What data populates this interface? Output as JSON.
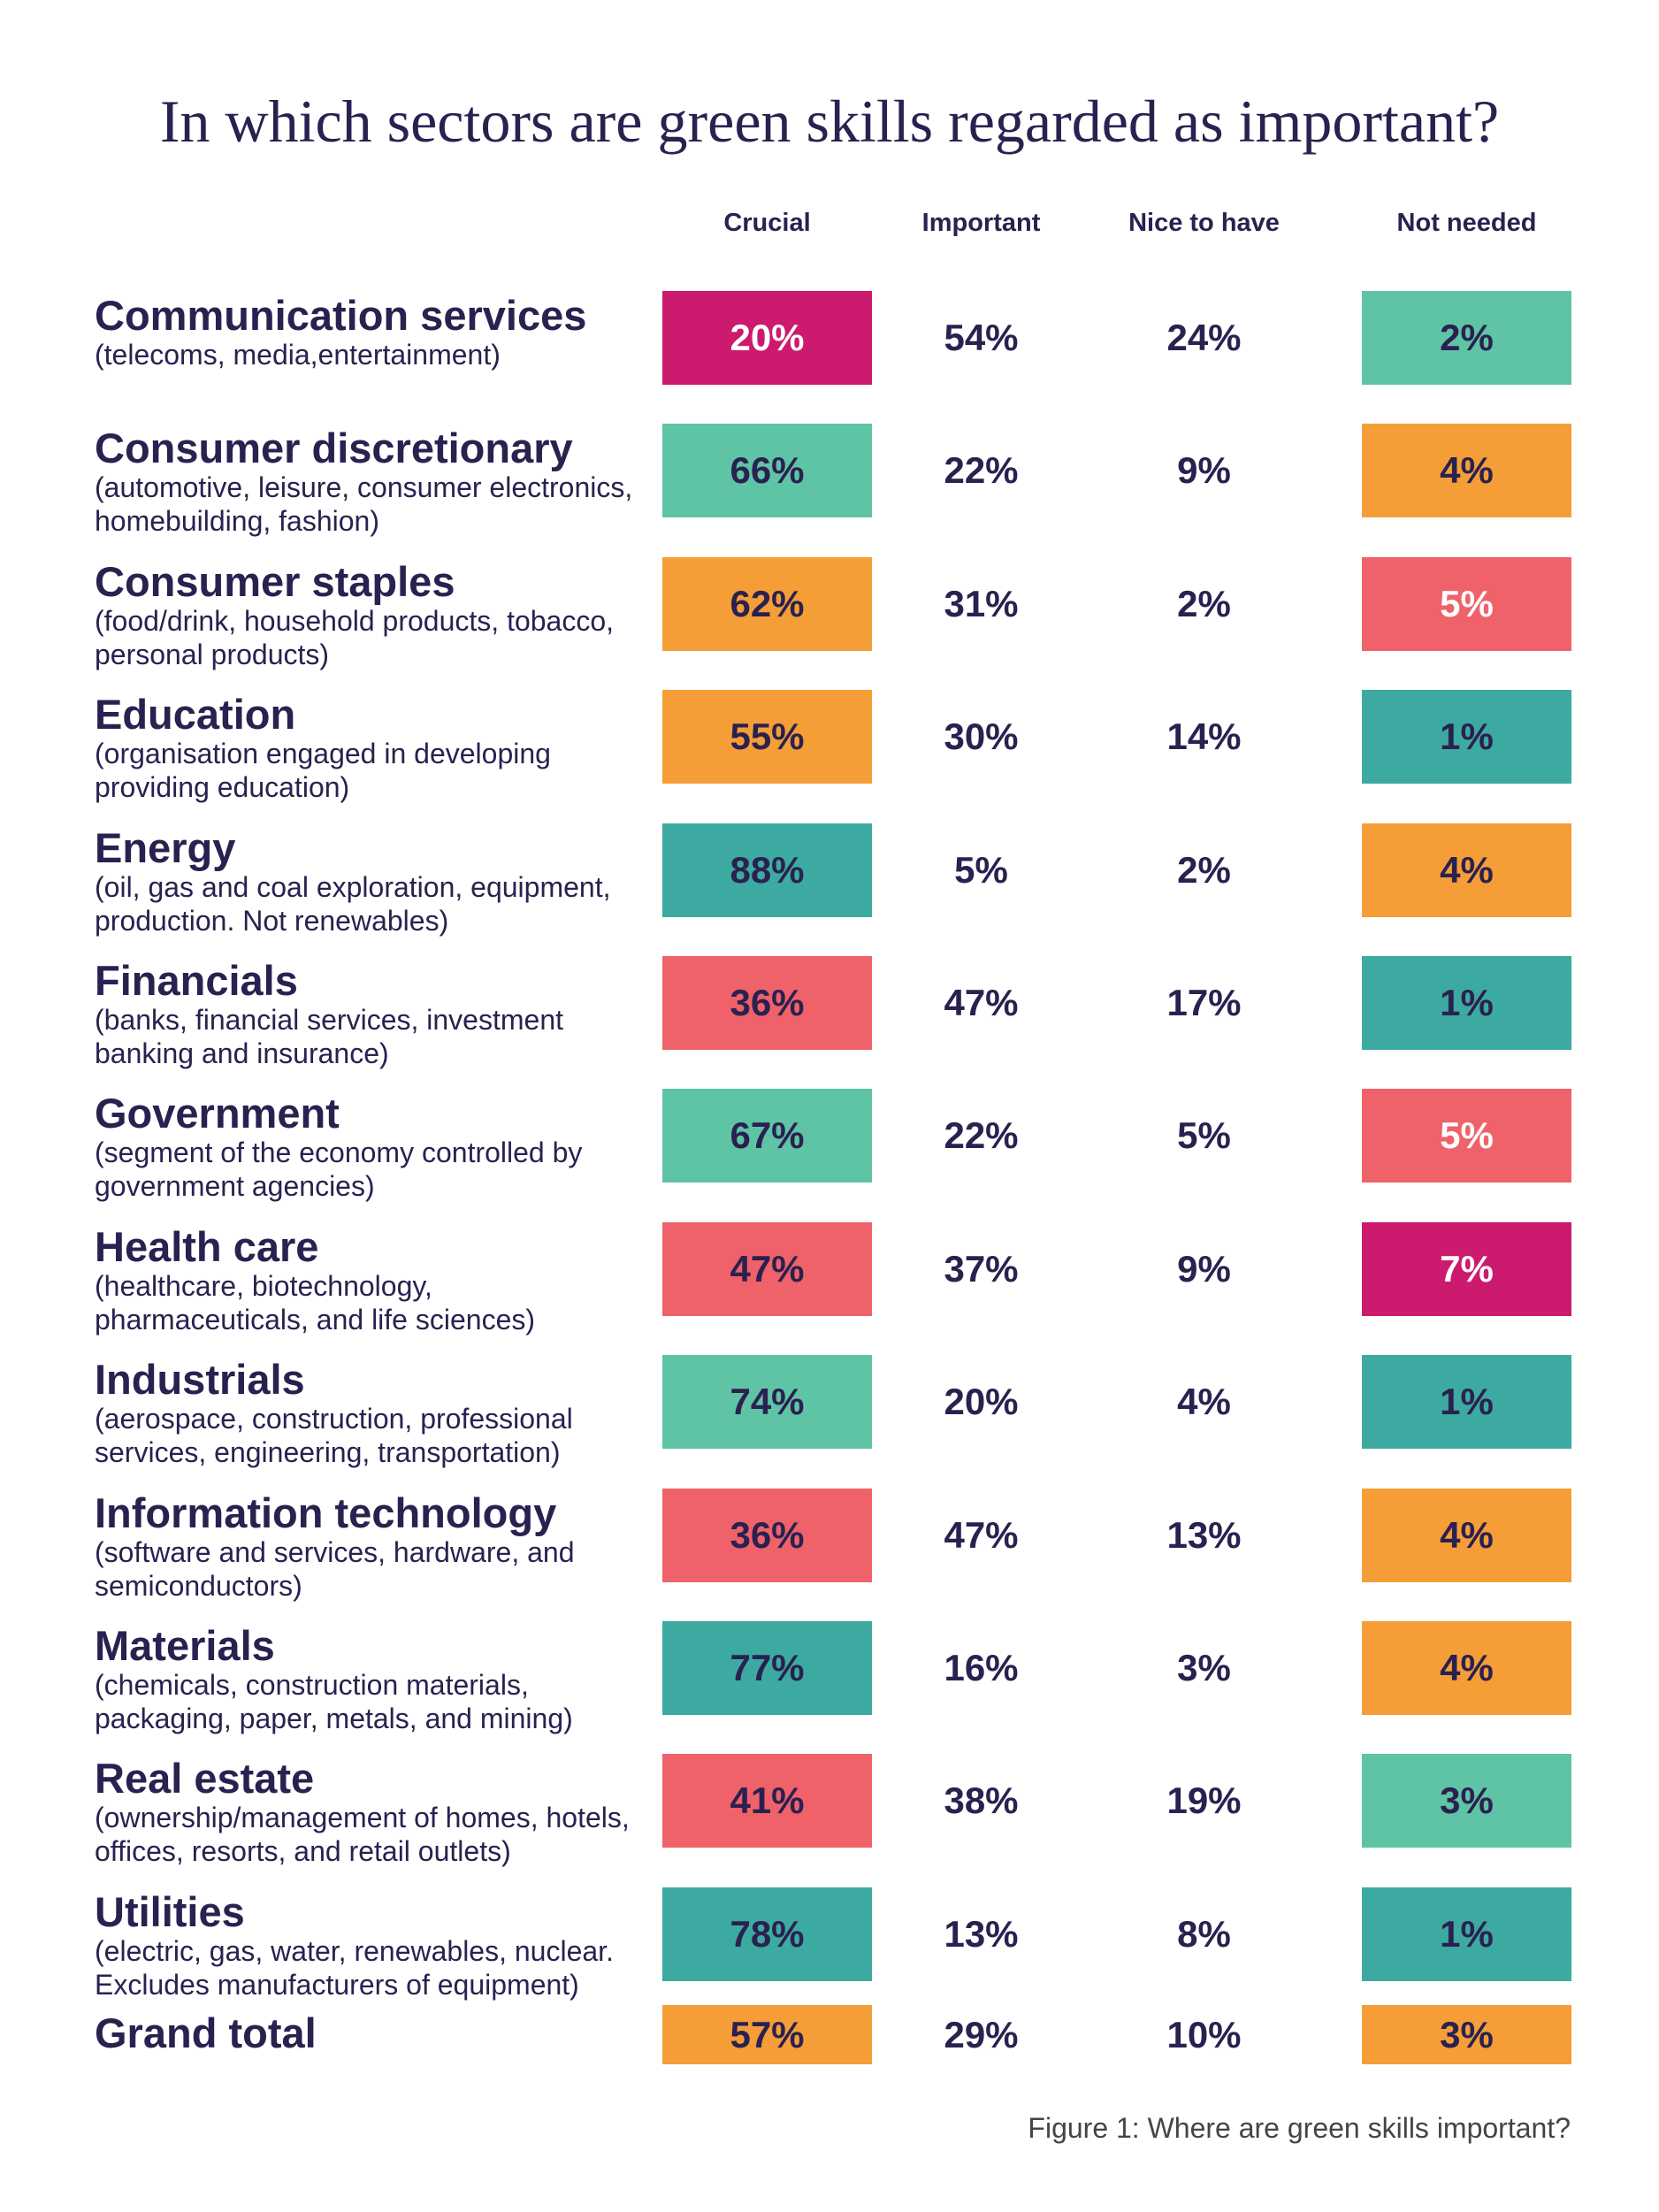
{
  "title": "In which sectors are green skills regarded as important?",
  "table": {
    "columns": [
      "Crucial",
      "Important",
      "Nice to have",
      "Not needed"
    ],
    "rows": [
      {
        "label": "Communication services",
        "description": [
          "(telecoms, media,entertainment)"
        ],
        "cells": [
          {
            "text": "20%",
            "color": "#cc1a6e",
            "text_color": "#ffffff"
          },
          {
            "text": "54%"
          },
          {
            "text": "24%"
          },
          {
            "text": "2%",
            "color": "#5fc3a5"
          }
        ]
      },
      {
        "label": "Consumer discretionary",
        "description": [
          "(automotive, leisure, consumer electronics,",
          "homebuilding, fashion)"
        ],
        "cells": [
          {
            "text": "66%",
            "color": "#5fc3a5"
          },
          {
            "text": "22%"
          },
          {
            "text": "9%"
          },
          {
            "text": "4%",
            "color": "#f59e37"
          }
        ]
      },
      {
        "label": "Consumer staples",
        "description": [
          "(food/drink, household products, tobacco,",
          "personal products)"
        ],
        "cells": [
          {
            "text": "62%",
            "color": "#f59e37"
          },
          {
            "text": "31%"
          },
          {
            "text": "2%"
          },
          {
            "text": "5%",
            "color": "#ef6269",
            "text_color": "#ffffff"
          }
        ]
      },
      {
        "label": "Education",
        "description": [
          "(organisation engaged in developing",
          "providing education)"
        ],
        "cells": [
          {
            "text": "55%",
            "color": "#f59e37"
          },
          {
            "text": "30%"
          },
          {
            "text": "14%"
          },
          {
            "text": "1%",
            "color": "#3caaa0"
          }
        ]
      },
      {
        "label": "Energy",
        "description": [
          "(oil, gas and coal exploration, equipment,",
          "production. Not renewables)"
        ],
        "cells": [
          {
            "text": "88%",
            "color": "#3caaa0"
          },
          {
            "text": "5%"
          },
          {
            "text": "2%"
          },
          {
            "text": "4%",
            "color": "#f59e37"
          }
        ]
      },
      {
        "label": "Financials",
        "description": [
          "(banks, financial services, investment",
          "banking and insurance)"
        ],
        "cells": [
          {
            "text": "36%",
            "color": "#ef6269"
          },
          {
            "text": "47%"
          },
          {
            "text": "17%"
          },
          {
            "text": "1%",
            "color": "#3caaa0"
          }
        ]
      },
      {
        "label": "Government",
        "description": [
          "(segment of the economy controlled by",
          "government agencies)"
        ],
        "cells": [
          {
            "text": "67%",
            "color": "#5fc3a5"
          },
          {
            "text": "22%"
          },
          {
            "text": "5%"
          },
          {
            "text": "5%",
            "color": "#ef6269",
            "text_color": "#ffffff"
          }
        ]
      },
      {
        "label": "Health care",
        "description": [
          "(healthcare, biotechnology,",
          "pharmaceuticals, and life sciences)"
        ],
        "cells": [
          {
            "text": "47%",
            "color": "#ef6269"
          },
          {
            "text": "37%"
          },
          {
            "text": "9%"
          },
          {
            "text": "7%",
            "color": "#cc1a6e",
            "text_color": "#ffffff"
          }
        ]
      },
      {
        "label": "Industrials",
        "description": [
          "(aerospace, construction, professional",
          "services, engineering, transportation)"
        ],
        "cells": [
          {
            "text": "74%",
            "color": "#5fc3a5"
          },
          {
            "text": "20%"
          },
          {
            "text": "4%"
          },
          {
            "text": "1%",
            "color": "#3caaa0"
          }
        ]
      },
      {
        "label": "Information technology",
        "description": [
          "(software and services, hardware, and",
          "semiconductors)"
        ],
        "cells": [
          {
            "text": "36%",
            "color": "#ef6269"
          },
          {
            "text": "47%"
          },
          {
            "text": "13%"
          },
          {
            "text": "4%",
            "color": "#f59e37"
          }
        ]
      },
      {
        "label": "Materials",
        "description": [
          "(chemicals, construction materials,",
          "packaging, paper, metals, and mining)"
        ],
        "cells": [
          {
            "text": "77%",
            "color": "#3caaa0"
          },
          {
            "text": "16%"
          },
          {
            "text": "3%"
          },
          {
            "text": "4%",
            "color": "#f59e37"
          }
        ]
      },
      {
        "label": "Real estate",
        "description": [
          "(ownership/management of homes, hotels,",
          "offices, resorts, and retail outlets)"
        ],
        "cells": [
          {
            "text": "41%",
            "color": "#ef6269"
          },
          {
            "text": "38%"
          },
          {
            "text": "19%"
          },
          {
            "text": "3%",
            "color": "#5fc3a5"
          }
        ]
      },
      {
        "label": "Utilities",
        "description": [
          "(electric, gas, water, renewables, nuclear.",
          "Excludes manufacturers of equipment)"
        ],
        "cells": [
          {
            "text": "78%",
            "color": "#3caaa0"
          },
          {
            "text": "13%"
          },
          {
            "text": "8%"
          },
          {
            "text": "1%",
            "color": "#3caaa0"
          }
        ]
      }
    ],
    "total": {
      "label": "Grand total",
      "cells": [
        {
          "text": "57%",
          "color": "#f59e37"
        },
        {
          "text": "29%"
        },
        {
          "text": "10%"
        },
        {
          "text": "3%",
          "color": "#f59e37"
        }
      ]
    }
  },
  "caption": "Figure 1: Where are green skills important?"
}
